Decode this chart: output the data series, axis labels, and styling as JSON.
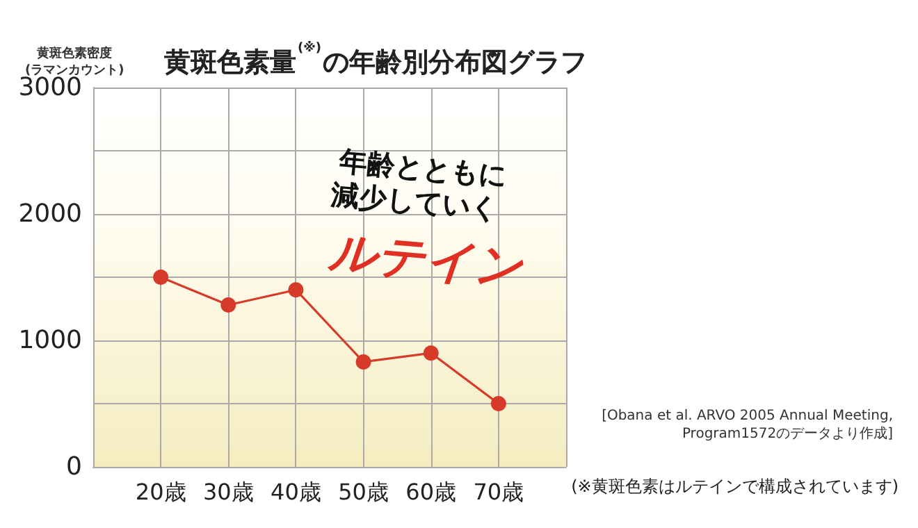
{
  "chart_data": {
    "type": "line",
    "title": "黄斑色素量$^{(※)}$の年齢別分布図グラフ",
    "ylabel": "黄斑色素密度\n(ラマンカウント)",
    "categories": [
      "20歳",
      "30歳",
      "40歳",
      "50歳",
      "60歳",
      "70歳"
    ],
    "series": [
      {
        "color": "#d63b2a",
        "values": [
          1500,
          1280,
          1400,
          830,
          900,
          500
        ]
      }
    ],
    "ylim": [
      0,
      3000
    ],
    "yticks": [
      0,
      {
        "value": 500,
        "label": null
      },
      1000,
      {
        "value": 1500,
        "label": null
      },
      2000,
      {
        "value": 2500,
        "label": null
      },
      3000
    ],
    "grid": true,
    "marker": "circle",
    "line_style": "solid",
    "annotations": [
      "年齢とともに",
      "減少していく",
      "ルテイン",
      "[Obana et al. ARVO 2005 Annual Meeting,\nProgram1572のデータより作成]",
      "(※黄斑色素はルテインで構成されています)"
    ]
  }
}
